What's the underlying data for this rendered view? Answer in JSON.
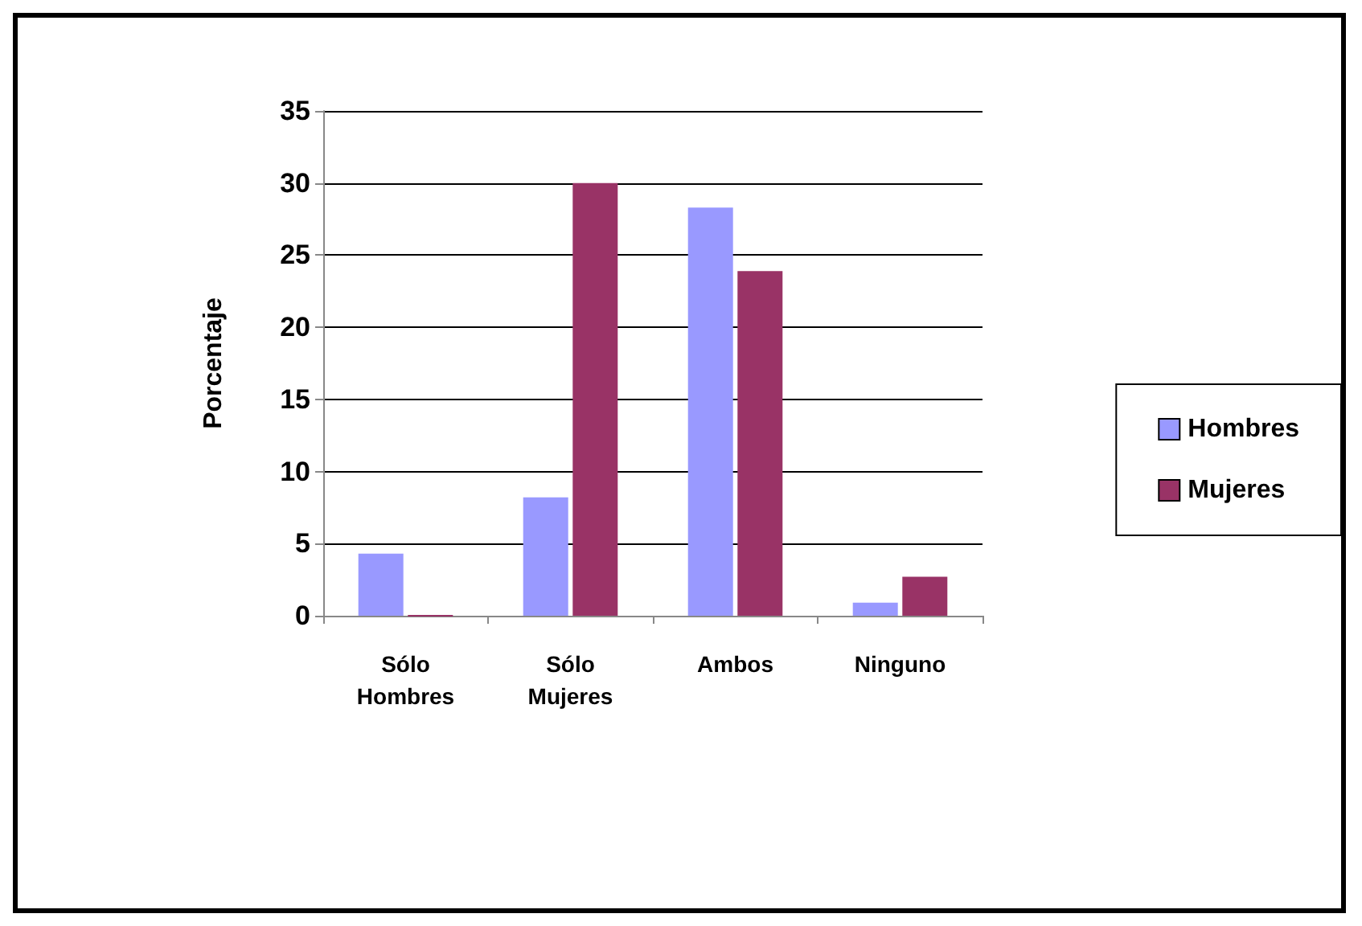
{
  "chart_data": {
    "type": "bar",
    "ylabel": "Porcentaje",
    "categories": [
      "Sólo\nHombres",
      "Sólo\nMujeres",
      "Ambos",
      "Ninguno"
    ],
    "series": [
      {
        "name": "Hombres",
        "color": "#9999ff",
        "values": [
          4.3,
          8.2,
          28.3,
          0.9
        ]
      },
      {
        "name": "Mujeres",
        "color": "#993366",
        "values": [
          0,
          30,
          23.9,
          2.7
        ]
      }
    ],
    "ylim": [
      0,
      35
    ],
    "yticks": [
      0,
      5,
      10,
      15,
      20,
      25,
      30,
      35
    ],
    "grid": "y",
    "legend": "right"
  }
}
